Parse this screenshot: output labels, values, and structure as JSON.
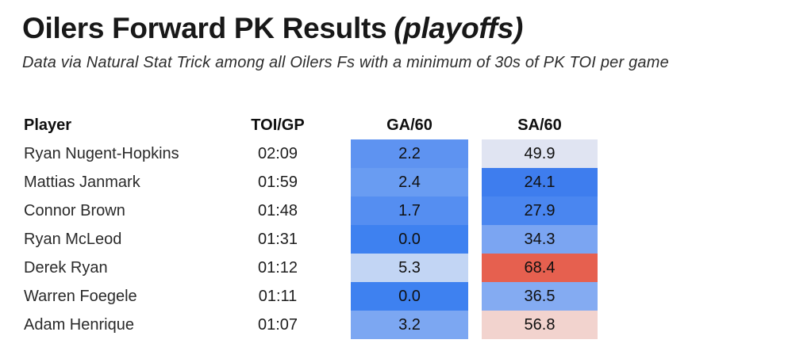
{
  "header": {
    "title_main": "Oilers Forward PK Results",
    "title_italic": "(playoffs)",
    "subtitle": "Data via Natural Stat Trick among all Oilers Fs with a minimum of 30s of PK TOI per game"
  },
  "chart_data": {
    "type": "table",
    "style": "heatmap-table",
    "columns": [
      "Player",
      "TOI/GP",
      "GA/60",
      "SA/60"
    ],
    "color_scale_note": "blue = low/good, red = high/bad",
    "rows": [
      {
        "player": "Ryan Nugent-Hopkins",
        "toi_gp": "02:09",
        "ga_60": "2.2",
        "ga_color": "#5E93F1",
        "sa_60": "49.9",
        "sa_color": "#E0E4F2"
      },
      {
        "player": "Mattias Janmark",
        "toi_gp": "01:59",
        "ga_60": "2.4",
        "ga_color": "#699CF2",
        "sa_60": "24.1",
        "sa_color": "#3E7DEE"
      },
      {
        "player": "Connor Brown",
        "toi_gp": "01:48",
        "ga_60": "1.7",
        "ga_color": "#558EF1",
        "sa_60": "27.9",
        "sa_color": "#4A86F0"
      },
      {
        "player": "Ryan McLeod",
        "toi_gp": "01:31",
        "ga_60": "0.0",
        "ga_color": "#3E81F0",
        "sa_60": "34.3",
        "sa_color": "#7BA5F2"
      },
      {
        "player": "Derek Ryan",
        "toi_gp": "01:12",
        "ga_60": "5.3",
        "ga_color": "#C2D5F4",
        "sa_60": "68.4",
        "sa_color": "#E6604F"
      },
      {
        "player": "Warren Foegele",
        "toi_gp": "01:11",
        "ga_60": "0.0",
        "ga_color": "#3E81F0",
        "sa_60": "36.5",
        "sa_color": "#84ABF2"
      },
      {
        "player": "Adam Henrique",
        "toi_gp": "01:07",
        "ga_60": "3.2",
        "ga_color": "#7CA7F2",
        "sa_60": "56.8",
        "sa_color": "#F2D3CE"
      }
    ]
  }
}
